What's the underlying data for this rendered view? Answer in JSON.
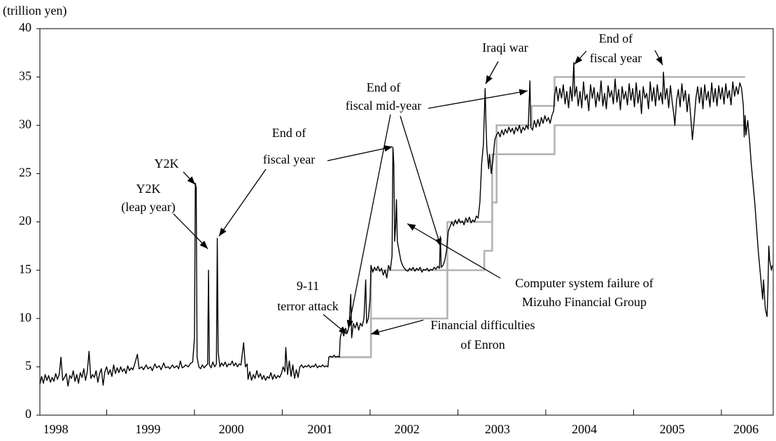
{
  "chart_data": {
    "type": "line",
    "ylabel": "(trillion yen)",
    "xlim": [
      1998.24,
      2006.59
    ],
    "xticks": [
      {
        "value": 1998.42,
        "label": "1998"
      },
      {
        "value": 1999.47,
        "label": "1999"
      },
      {
        "value": 2000.42,
        "label": "2000"
      },
      {
        "value": 2001.43,
        "label": "2001"
      },
      {
        "value": 2002.42,
        "label": "2002"
      },
      {
        "value": 2003.45,
        "label": "2003"
      },
      {
        "value": 2004.44,
        "label": "2004"
      },
      {
        "value": 2005.44,
        "label": "2005"
      },
      {
        "value": 2006.28,
        "label": "2006"
      }
    ],
    "x_minor_ticks": [
      1999,
      2000,
      2001,
      2002,
      2003,
      2004,
      2005,
      2006
    ],
    "ylim": [
      0,
      40
    ],
    "yticks": [
      0,
      5,
      10,
      15,
      20,
      25,
      30,
      35,
      40
    ],
    "grid": false,
    "series": [
      {
        "color": "#b3b3b3",
        "x": [
          2001.53,
          2002.01,
          2002.01,
          2002.88,
          2002.88,
          2003.39,
          2003.39,
          2003.44,
          2003.44,
          2003.84,
          2003.84,
          2004.1,
          2004.1,
          2006.27
        ],
        "values": [
          6,
          6,
          15,
          15,
          20,
          20,
          22,
          22,
          30,
          30,
          32,
          32,
          35,
          35
        ]
      },
      {
        "color": "#b3b3b3",
        "x": [
          2001.53,
          2002.01,
          2002.01,
          2002.88,
          2002.88,
          2003.3,
          2003.3,
          2003.39,
          2003.39,
          2004.1,
          2004.1,
          2006.27
        ],
        "values": [
          6,
          6,
          10,
          10,
          15,
          15,
          17,
          17,
          27,
          27,
          30,
          30
        ]
      },
      {
        "color": "#000000",
        "x": [
          1998.24,
          1998.26,
          1998.28,
          1998.3,
          1998.32,
          1998.34,
          1998.36,
          1998.38,
          1998.4,
          1998.42,
          1998.44,
          1998.46,
          1998.48,
          1998.5,
          1998.52,
          1998.54,
          1998.56,
          1998.58,
          1998.6,
          1998.62,
          1998.64,
          1998.66,
          1998.68,
          1998.7,
          1998.72,
          1998.74,
          1998.76,
          1998.78,
          1998.8,
          1998.82,
          1998.84,
          1998.86,
          1998.88,
          1998.9,
          1998.92,
          1998.94,
          1998.96,
          1998.98,
          1999.0,
          1999.02,
          1999.04,
          1999.06,
          1999.08,
          1999.1,
          1999.12,
          1999.14,
          1999.16,
          1999.18,
          1999.2,
          1999.22,
          1999.24,
          1999.26,
          1999.28,
          1999.3,
          1999.32,
          1999.35,
          1999.37,
          1999.4,
          1999.42,
          1999.45,
          1999.47,
          1999.5,
          1999.52,
          1999.55,
          1999.57,
          1999.6,
          1999.62,
          1999.65,
          1999.67,
          1999.7,
          1999.72,
          1999.75,
          1999.77,
          1999.8,
          1999.82,
          1999.84,
          1999.86,
          1999.88,
          1999.9,
          1999.93,
          1999.95,
          1999.98,
          2000.0,
          2000.01,
          2000.02,
          2000.03,
          2000.05,
          2000.07,
          2000.09,
          2000.11,
          2000.13,
          2000.15,
          2000.16,
          2000.17,
          2000.19,
          2000.21,
          2000.23,
          2000.25,
          2000.26,
          2000.27,
          2000.29,
          2000.31,
          2000.33,
          2000.35,
          2000.37,
          2000.39,
          2000.41,
          2000.43,
          2000.45,
          2000.47,
          2000.49,
          2000.51,
          2000.53,
          2000.56,
          2000.58,
          2000.6,
          2000.61,
          2000.63,
          2000.65,
          2000.67,
          2000.69,
          2000.71,
          2000.73,
          2000.75,
          2000.77,
          2000.79,
          2000.81,
          2000.83,
          2000.85,
          2000.87,
          2000.89,
          2000.91,
          2000.93,
          2000.95,
          2000.97,
          2000.99,
          2001.01,
          2001.03,
          2001.04,
          2001.06,
          2001.08,
          2001.1,
          2001.12,
          2001.14,
          2001.16,
          2001.18,
          2001.2,
          2001.22,
          2001.24,
          2001.26,
          2001.28,
          2001.3,
          2001.32,
          2001.34,
          2001.36,
          2001.38,
          2001.4,
          2001.42,
          2001.44,
          2001.46,
          2001.48,
          2001.5,
          2001.52,
          2001.53,
          2001.55,
          2001.57,
          2001.59,
          2001.61,
          2001.63,
          2001.65,
          2001.66,
          2001.68,
          2001.7,
          2001.72,
          2001.74,
          2001.76,
          2001.78,
          2001.79,
          2001.81,
          2001.83,
          2001.85,
          2001.87,
          2001.89,
          2001.91,
          2001.93,
          2001.95,
          2001.96,
          2001.98,
          2002.0,
          2002.01,
          2002.03,
          2002.05,
          2002.07,
          2002.09,
          2002.11,
          2002.13,
          2002.15,
          2002.17,
          2002.19,
          2002.21,
          2002.23,
          2002.25,
          2002.26,
          2002.27,
          2002.28,
          2002.29,
          2002.3,
          2002.31,
          2002.33,
          2002.35,
          2002.37,
          2002.39,
          2002.41,
          2002.43,
          2002.45,
          2002.47,
          2002.49,
          2002.51,
          2002.53,
          2002.55,
          2002.57,
          2002.59,
          2002.61,
          2002.63,
          2002.65,
          2002.67,
          2002.69,
          2002.71,
          2002.73,
          2002.75,
          2002.77,
          2002.79,
          2002.8,
          2002.81,
          2002.83,
          2002.85,
          2002.87,
          2002.89,
          2002.91,
          2002.93,
          2002.95,
          2002.97,
          2002.99,
          2003.01,
          2003.03,
          2003.05,
          2003.07,
          2003.09,
          2003.11,
          2003.13,
          2003.15,
          2003.17,
          2003.19,
          2003.21,
          2003.23,
          2003.25,
          2003.27,
          2003.29,
          2003.31,
          2003.32,
          2003.33,
          2003.35,
          2003.36,
          2003.38,
          2003.4,
          2003.42,
          2003.44,
          2003.46,
          2003.48,
          2003.5,
          2003.52,
          2003.54,
          2003.56,
          2003.58,
          2003.6,
          2003.62,
          2003.64,
          2003.66,
          2003.68,
          2003.7,
          2003.72,
          2003.74,
          2003.76,
          2003.78,
          2003.8,
          2003.82,
          2003.83,
          2003.85,
          2003.87,
          2003.89,
          2003.91,
          2003.93,
          2003.95,
          2003.97,
          2003.99,
          2004.01,
          2004.03,
          2004.05,
          2004.07,
          2004.09,
          2004.1,
          2004.12,
          2004.14,
          2004.16,
          2004.18,
          2004.2,
          2004.22,
          2004.24,
          2004.26,
          2004.28,
          2004.3,
          2004.32,
          2004.33,
          2004.35,
          2004.37,
          2004.39,
          2004.41,
          2004.43,
          2004.45,
          2004.47,
          2004.49,
          2004.51,
          2004.53,
          2004.55,
          2004.57,
          2004.59,
          2004.61,
          2004.63,
          2004.65,
          2004.67,
          2004.69,
          2004.71,
          2004.73,
          2004.75,
          2004.77,
          2004.79,
          2004.81,
          2004.83,
          2004.85,
          2004.87,
          2004.89,
          2004.91,
          2004.93,
          2004.95,
          2004.97,
          2004.99,
          2005.01,
          2005.03,
          2005.05,
          2005.07,
          2005.09,
          2005.11,
          2005.13,
          2005.15,
          2005.17,
          2005.19,
          2005.21,
          2005.23,
          2005.25,
          2005.27,
          2005.29,
          2005.31,
          2005.33,
          2005.34,
          2005.36,
          2005.38,
          2005.4,
          2005.42,
          2005.44,
          2005.46,
          2005.47,
          2005.49,
          2005.51,
          2005.53,
          2005.55,
          2005.57,
          2005.59,
          2005.61,
          2005.63,
          2005.65,
          2005.67,
          2005.69,
          2005.71,
          2005.73,
          2005.75,
          2005.77,
          2005.79,
          2005.81,
          2005.83,
          2005.85,
          2005.87,
          2005.89,
          2005.91,
          2005.93,
          2005.95,
          2005.97,
          2005.99,
          2006.01,
          2006.03,
          2006.05,
          2006.07,
          2006.09,
          2006.11,
          2006.13,
          2006.15,
          2006.17,
          2006.19,
          2006.21,
          2006.23,
          2006.25,
          2006.26,
          2006.27,
          2006.28,
          2006.3,
          2006.32,
          2006.34,
          2006.36,
          2006.38,
          2006.4,
          2006.42,
          2006.44,
          2006.46,
          2006.47,
          2006.48,
          2006.49,
          2006.5,
          2006.52,
          2006.53,
          2006.54,
          2006.55,
          2006.57,
          2006.58
        ],
        "values": [
          3.2,
          4.0,
          3.3,
          4.2,
          3.6,
          4.1,
          3.4,
          3.9,
          3.5,
          4.3,
          3.7,
          4.2,
          6.0,
          3.6,
          3.9,
          4.3,
          3.0,
          4.1,
          3.8,
          4.6,
          3.5,
          4.2,
          3.3,
          4.4,
          3.9,
          4.8,
          3.6,
          4.5,
          6.6,
          3.8,
          4.2,
          3.9,
          4.6,
          3.4,
          4.3,
          4.8,
          3.1,
          4.5,
          5.0,
          4.2,
          4.7,
          4.0,
          5.2,
          4.3,
          4.9,
          4.4,
          5.0,
          4.5,
          4.8,
          4.3,
          5.1,
          4.6,
          4.9,
          4.7,
          5.3,
          6.3,
          4.8,
          5.0,
          4.7,
          5.2,
          4.8,
          5.0,
          4.6,
          5.3,
          4.9,
          5.1,
          4.7,
          5.4,
          4.9,
          5.0,
          4.8,
          5.2,
          4.9,
          5.1,
          4.8,
          5.6,
          4.9,
          5.0,
          5.2,
          5.0,
          5.3,
          5.5,
          8.0,
          24.0,
          23.5,
          6.0,
          5.0,
          4.8,
          5.2,
          4.9,
          5.1,
          5.3,
          15.0,
          5.2,
          4.9,
          5.5,
          5.0,
          5.3,
          18.3,
          6.5,
          5.0,
          5.4,
          5.1,
          5.5,
          5.0,
          5.3,
          5.2,
          5.6,
          5.1,
          5.4,
          5.0,
          5.3,
          5.2,
          7.5,
          5.0,
          5.3,
          3.7,
          4.5,
          3.6,
          4.2,
          3.8,
          4.6,
          3.9,
          4.3,
          3.7,
          4.1,
          3.6,
          4.0,
          3.8,
          4.4,
          3.7,
          4.2,
          3.8,
          4.1,
          3.9,
          4.3,
          5.0,
          4.5,
          7.0,
          4.2,
          5.6,
          4.0,
          5.2,
          3.8,
          4.7,
          3.9,
          5.0,
          5.2,
          4.9,
          5.1,
          5.0,
          5.2,
          4.9,
          5.1,
          5.0,
          5.3,
          4.9,
          5.1,
          5.0,
          5.2,
          5.0,
          5.1,
          5.0,
          6.0,
          6.1,
          6.0,
          6.2,
          6.0,
          6.1,
          6.0,
          8.0,
          8.8,
          8.2,
          9.0,
          8.5,
          9.2,
          12.5,
          8.0,
          9.5,
          9.0,
          9.6,
          8.8,
          9.5,
          9.2,
          10.0,
          14.0,
          9.5,
          10.0,
          12.0,
          15.5,
          14.8,
          15.3,
          15.0,
          15.4,
          14.9,
          15.2,
          14.5,
          15.0,
          14.2,
          15.5,
          15.0,
          16.5,
          27.7,
          26.0,
          18.0,
          19.5,
          22.3,
          18.0,
          17.0,
          16.0,
          15.5,
          15.2,
          15.0,
          14.9,
          15.2,
          15.0,
          15.3,
          14.9,
          15.2,
          15.0,
          15.3,
          14.8,
          15.1,
          15.0,
          15.2,
          14.9,
          15.1,
          15.0,
          15.3,
          15.1,
          15.4,
          15.2,
          18.5,
          15.3,
          15.5,
          16.0,
          17.0,
          19.0,
          19.5,
          20.0,
          19.6,
          20.2,
          19.8,
          20.3,
          19.9,
          20.1,
          19.7,
          20.4,
          20.0,
          20.5,
          19.9,
          20.2,
          20.0,
          20.6,
          20.4,
          22.0,
          26.0,
          28.0,
          33.8,
          30.0,
          27.5,
          25.5,
          27.0,
          25.0,
          26.5,
          28.5,
          29.0,
          29.3,
          28.8,
          29.5,
          29.0,
          29.6,
          29.2,
          29.8,
          29.3,
          29.7,
          29.1,
          29.8,
          29.4,
          30.0,
          29.2,
          29.8,
          29.5,
          30.0,
          29.6,
          34.6,
          29.8,
          29.5,
          30.5,
          29.8,
          30.6,
          29.9,
          30.8,
          30.2,
          31.0,
          30.4,
          30.8,
          30.2,
          31.0,
          31.5,
          33.0,
          34.0,
          32.5,
          33.8,
          32.8,
          34.2,
          32.2,
          33.5,
          31.8,
          34.0,
          32.5,
          36.5,
          33.0,
          34.0,
          32.0,
          33.5,
          31.8,
          34.5,
          32.6,
          33.2,
          31.5,
          34.2,
          32.8,
          33.9,
          31.9,
          33.4,
          32.5,
          34.6,
          32.0,
          33.3,
          31.7,
          34.1,
          32.9,
          33.6,
          32.2,
          34.8,
          32.4,
          33.7,
          31.6,
          34.0,
          32.7,
          33.5,
          32.1,
          34.3,
          32.6,
          33.8,
          31.9,
          34.4,
          32.3,
          33.6,
          31.2,
          34.0,
          32.8,
          33.3,
          31.7,
          34.5,
          32.5,
          33.9,
          32.0,
          34.2,
          32.6,
          33.4,
          32.2,
          35.5,
          32.7,
          33.8,
          31.8,
          34.1,
          32.4,
          31.0,
          30.0,
          32.6,
          33.7,
          31.9,
          34.3,
          32.5,
          33.6,
          31.4,
          33.2,
          31.0,
          28.5,
          30.5,
          32.8,
          34.0,
          32.3,
          33.9,
          31.7,
          34.2,
          32.6,
          33.5,
          31.9,
          34.4,
          32.4,
          33.8,
          32.0,
          34.1,
          32.7,
          33.9,
          32.2,
          34.3,
          32.8,
          33.6,
          32.1,
          34.5,
          33.0,
          34.0,
          33.2,
          34.4,
          33.8,
          32.0,
          28.8,
          31.0,
          29.0,
          30.5,
          28.5,
          26.0,
          24.0,
          22.0,
          19.5,
          17.0,
          15.0,
          13.0,
          12.0,
          14.0,
          12.5,
          11.0,
          10.2,
          13.0,
          17.5,
          16.0,
          15.0,
          15.5
        ]
      }
    ],
    "annotations": [
      [
        "Y2K"
      ],
      [
        "Y2K",
        "(leap year)"
      ],
      [
        "End of",
        "fiscal year"
      ],
      [
        "End of",
        "fiscal mid-year"
      ],
      [
        "Iraqi war"
      ],
      [
        "End of",
        "fiscal year"
      ],
      [
        "9-11",
        "terror attack"
      ],
      [
        "Financial difficulties",
        "of Enron"
      ],
      [
        "Computer system failure of",
        "Mizuho Financial Group"
      ]
    ]
  }
}
